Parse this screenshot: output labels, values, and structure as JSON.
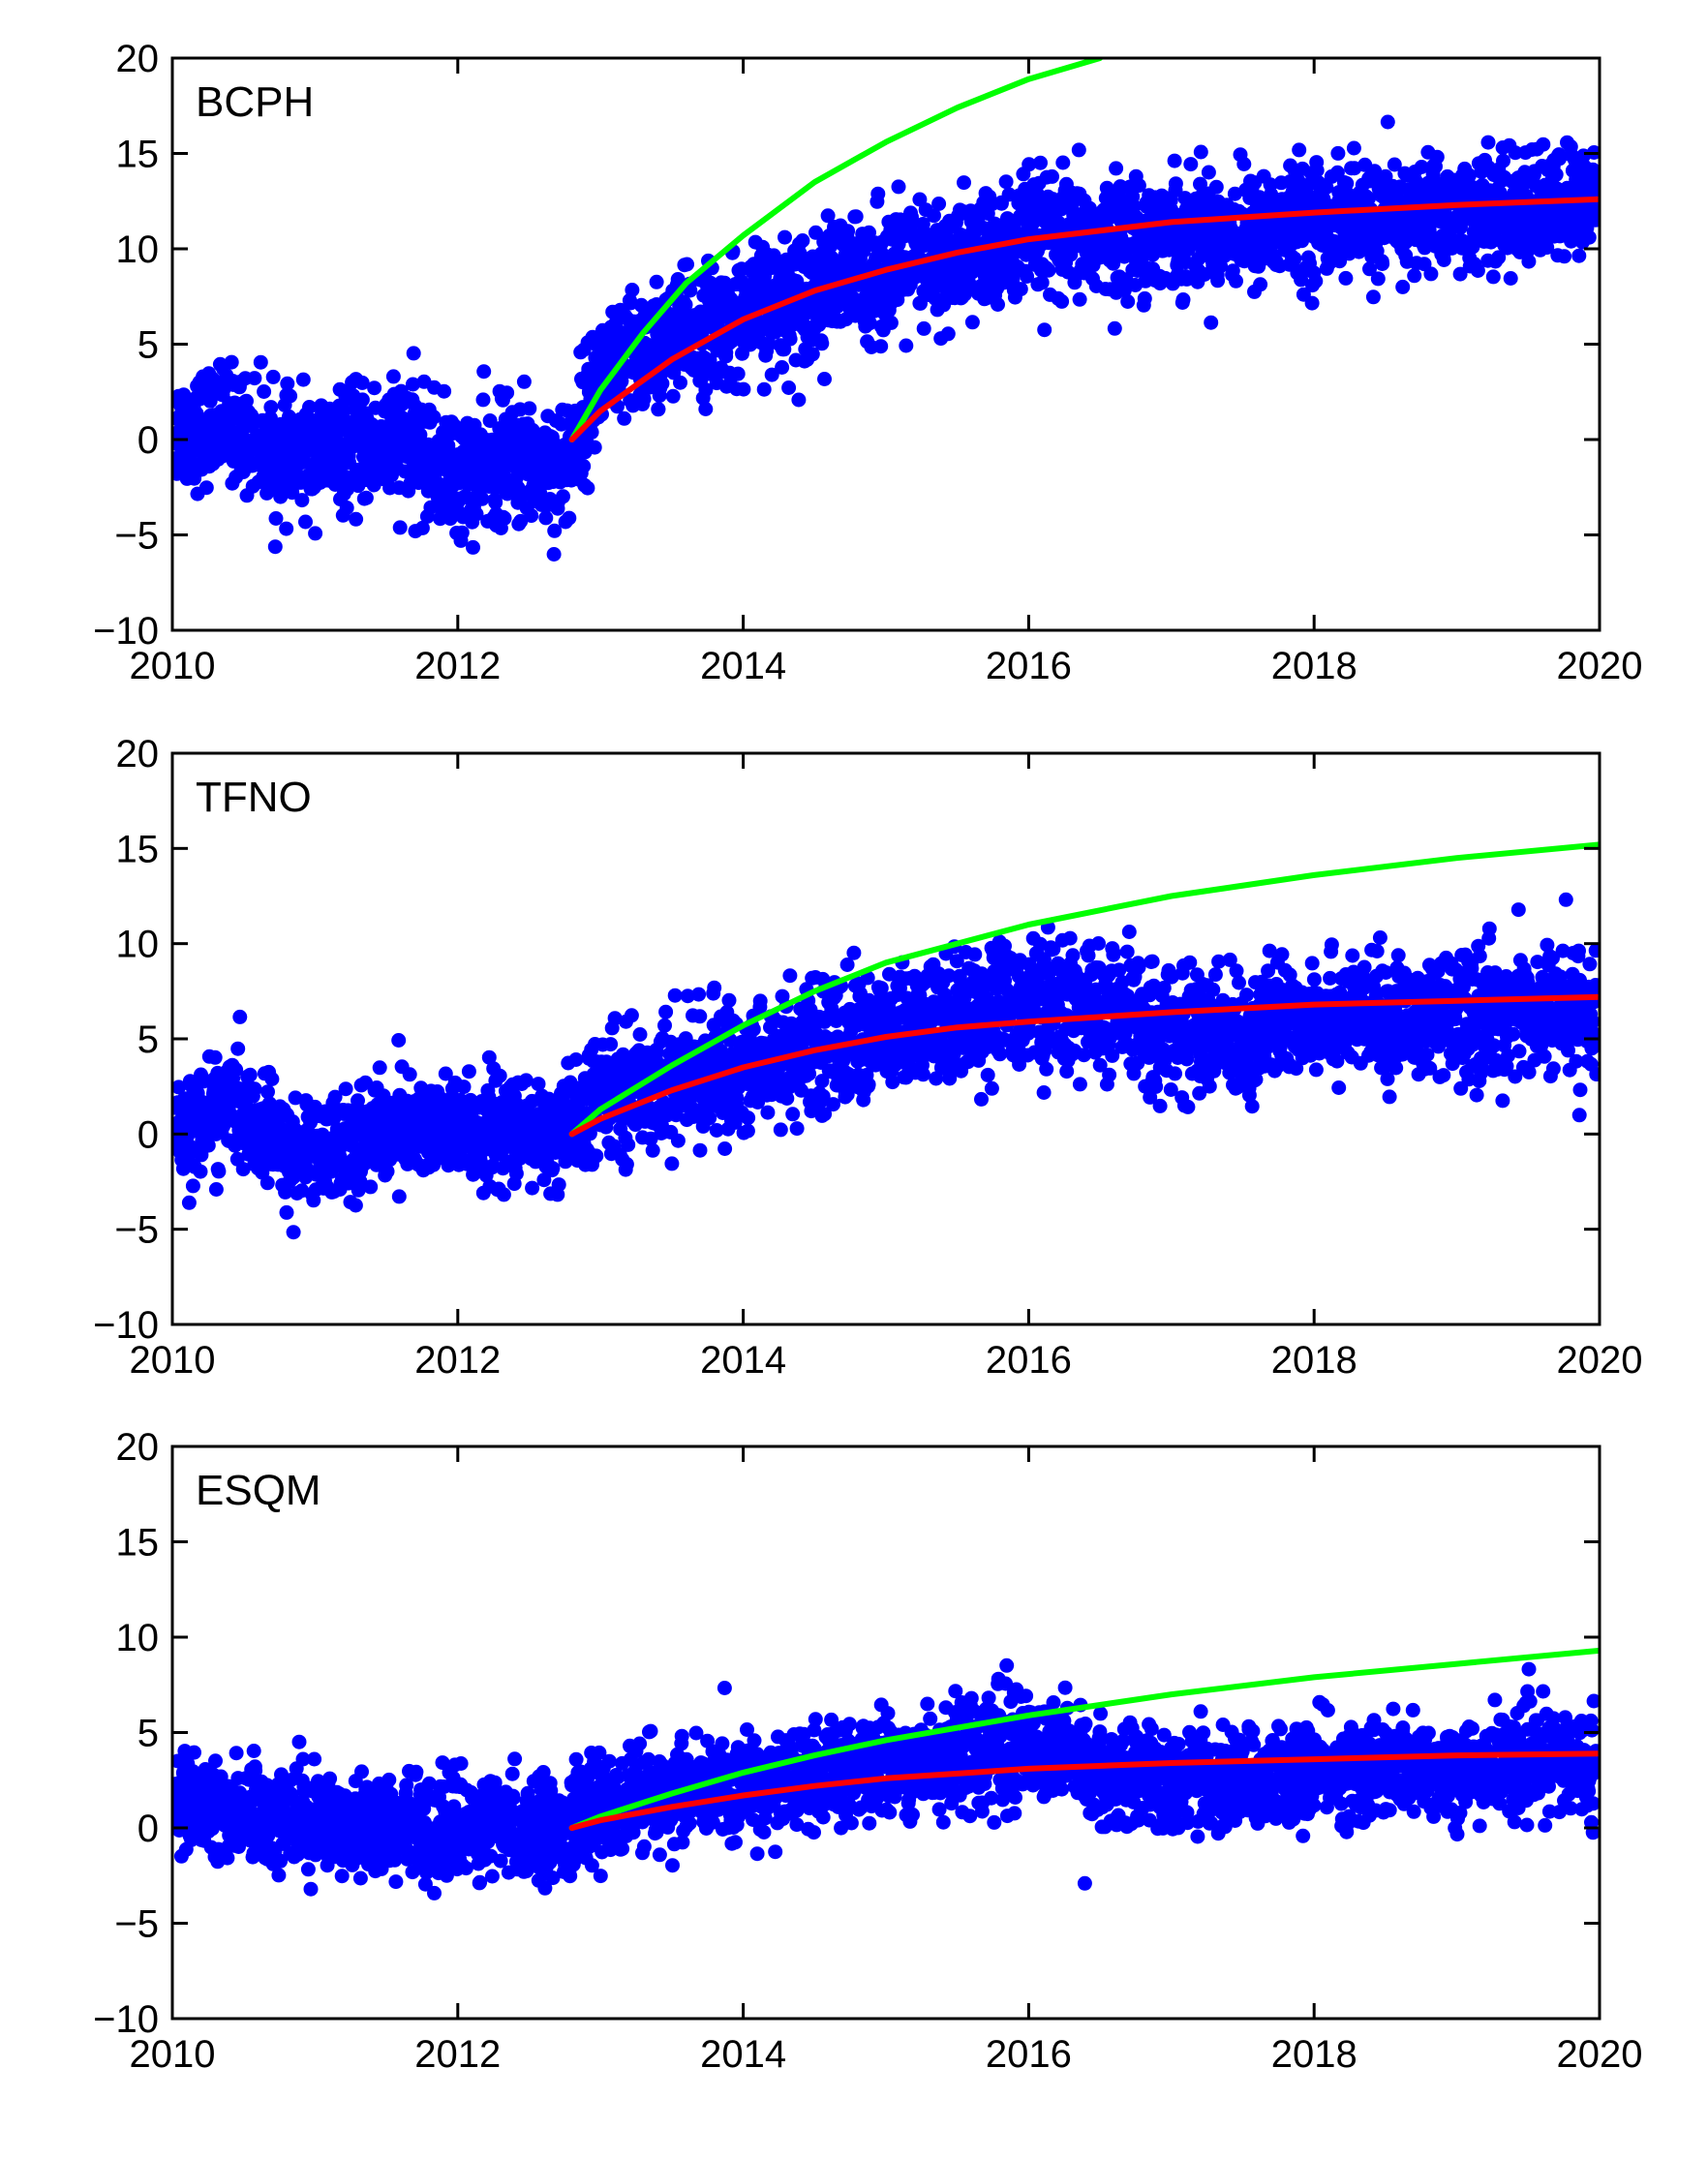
{
  "chart_data": [
    {
      "type": "scatter",
      "title": "BCPH",
      "xlim": [
        2010,
        2020
      ],
      "ylim": [
        -10,
        20
      ],
      "xticks": [
        2010,
        2012,
        2014,
        2016,
        2018,
        2020
      ],
      "yticks": [
        -10,
        -5,
        0,
        5,
        10,
        15,
        20
      ],
      "xtick_labels": [
        "2010",
        "2012",
        "2014",
        "2016",
        "2018",
        "2020"
      ],
      "ytick_labels": [
        "−10",
        "−5",
        "0",
        "5",
        "10",
        "15",
        "20"
      ],
      "grid": false,
      "series": [
        {
          "name": "observations",
          "kind": "points",
          "color": "#0000ff",
          "x": [
            2010.1,
            2010.4,
            2010.8,
            2011.2,
            2011.6,
            2012.0,
            2012.4,
            2012.75,
            2013.0,
            2013.3,
            2013.6,
            2014.0,
            2014.4,
            2014.8,
            2015.2,
            2015.6,
            2016.0,
            2016.5,
            2017.0,
            2017.5,
            2018.0,
            2018.5,
            2019.0,
            2019.5,
            2019.9
          ],
          "y": [
            0.5,
            1.0,
            -1.0,
            -0.5,
            0.0,
            -2.0,
            -1.0,
            -1.5,
            3.5,
            4.5,
            5.5,
            6.5,
            7.5,
            8.5,
            9.0,
            9.5,
            10.5,
            10.5,
            11.0,
            11.0,
            11.5,
            11.5,
            12.0,
            12.0,
            12.5
          ],
          "spread": [
            1.6,
            1.6,
            1.6,
            1.6,
            1.8,
            1.8,
            1.8,
            1.8,
            1.8,
            1.8,
            1.8,
            1.8,
            1.8,
            1.8,
            1.8,
            1.8,
            1.8,
            1.6,
            1.6,
            1.6,
            1.6,
            1.6,
            1.6,
            1.6,
            1.6
          ]
        },
        {
          "name": "green fit",
          "kind": "line",
          "color": "#00ff00",
          "x": [
            2012.8,
            2013.0,
            2013.3,
            2013.6,
            2014.0,
            2014.5,
            2015.0,
            2015.5,
            2016.0,
            2016.5
          ],
          "y": [
            0.0,
            2.6,
            5.6,
            8.2,
            10.7,
            13.5,
            15.6,
            17.4,
            18.9,
            20.0
          ]
        },
        {
          "name": "red fit",
          "kind": "line",
          "color": "#ff0000",
          "x": [
            2012.8,
            2013.0,
            2013.5,
            2014.0,
            2014.5,
            2015.0,
            2015.5,
            2016.0,
            2017.0,
            2018.0,
            2019.0,
            2020.0
          ],
          "y": [
            0.0,
            1.5,
            4.2,
            6.3,
            7.8,
            8.9,
            9.8,
            10.5,
            11.4,
            11.9,
            12.3,
            12.6
          ]
        }
      ]
    },
    {
      "type": "scatter",
      "title": "TFNO",
      "xlim": [
        2010,
        2020
      ],
      "ylim": [
        -10,
        20
      ],
      "xticks": [
        2010,
        2012,
        2014,
        2016,
        2018,
        2020
      ],
      "yticks": [
        -10,
        -5,
        0,
        5,
        10,
        15,
        20
      ],
      "xtick_labels": [
        "2010",
        "2012",
        "2014",
        "2016",
        "2018",
        "2020"
      ],
      "ytick_labels": [
        "−10",
        "−5",
        "0",
        "5",
        "10",
        "15",
        "20"
      ],
      "grid": false,
      "series": [
        {
          "name": "observations",
          "kind": "points",
          "color": "#0000ff",
          "x": [
            2010.1,
            2010.4,
            2010.8,
            2011.2,
            2011.6,
            2012.0,
            2012.4,
            2012.75,
            2013.0,
            2013.3,
            2013.6,
            2014.0,
            2014.4,
            2014.8,
            2015.2,
            2015.6,
            2016.0,
            2016.5,
            2017.0,
            2017.5,
            2018.0,
            2018.5,
            2019.0,
            2019.5,
            2019.9
          ],
          "y": [
            0.5,
            1.5,
            -1.0,
            -0.5,
            0.5,
            0.0,
            0.0,
            0.0,
            2.0,
            2.5,
            3.0,
            3.5,
            4.5,
            5.0,
            5.5,
            6.5,
            7.0,
            6.5,
            5.5,
            5.0,
            6.5,
            6.0,
            6.0,
            6.5,
            6.5
          ],
          "spread": [
            1.5,
            1.5,
            1.5,
            1.5,
            1.5,
            1.5,
            1.5,
            1.5,
            1.7,
            1.7,
            1.8,
            1.8,
            1.8,
            1.8,
            1.8,
            1.8,
            1.8,
            1.8,
            1.8,
            1.8,
            1.6,
            1.6,
            1.8,
            1.8,
            1.8
          ]
        },
        {
          "name": "green fit",
          "kind": "line",
          "color": "#00ff00",
          "x": [
            2012.8,
            2013.0,
            2013.5,
            2014.0,
            2014.5,
            2015.0,
            2016.0,
            2017.0,
            2018.0,
            2019.0,
            2020.0
          ],
          "y": [
            0.0,
            1.3,
            3.6,
            5.7,
            7.5,
            9.0,
            11.0,
            12.5,
            13.6,
            14.5,
            15.2
          ]
        },
        {
          "name": "red fit",
          "kind": "line",
          "color": "#ff0000",
          "x": [
            2012.8,
            2013.0,
            2013.5,
            2014.0,
            2014.5,
            2015.0,
            2015.5,
            2016.0,
            2017.0,
            2018.0,
            2019.0,
            2020.0
          ],
          "y": [
            0.0,
            0.8,
            2.3,
            3.5,
            4.4,
            5.1,
            5.6,
            5.9,
            6.4,
            6.8,
            7.0,
            7.2
          ]
        }
      ]
    },
    {
      "type": "scatter",
      "title": "ESQM",
      "xlim": [
        2010,
        2020
      ],
      "ylim": [
        -10,
        20
      ],
      "xticks": [
        2010,
        2012,
        2014,
        2016,
        2018,
        2020
      ],
      "yticks": [
        -10,
        -5,
        0,
        5,
        10,
        15,
        20
      ],
      "xtick_labels": [
        "2010",
        "2012",
        "2014",
        "2016",
        "2018",
        "2020"
      ],
      "ytick_labels": [
        "−10",
        "−5",
        "0",
        "5",
        "10",
        "15",
        "20"
      ],
      "grid": false,
      "series": [
        {
          "name": "observations",
          "kind": "points",
          "color": "#0000ff",
          "x": [
            2010.1,
            2010.4,
            2010.8,
            2011.2,
            2011.6,
            2012.0,
            2012.4,
            2012.75,
            2013.0,
            2013.3,
            2013.6,
            2014.0,
            2014.4,
            2014.8,
            2015.2,
            2015.6,
            2016.0,
            2016.5,
            2017.0,
            2017.5,
            2018.0,
            2018.5,
            2019.0,
            2019.5,
            2019.9
          ],
          "y": [
            1.0,
            1.0,
            0.5,
            0.5,
            0.0,
            0.0,
            0.0,
            0.0,
            1.0,
            1.5,
            1.8,
            2.0,
            2.5,
            3.0,
            3.5,
            4.0,
            4.5,
            3.0,
            2.5,
            2.5,
            3.0,
            3.0,
            3.0,
            3.5,
            3.5
          ],
          "spread": [
            1.4,
            1.4,
            1.4,
            1.4,
            1.4,
            1.4,
            1.4,
            1.4,
            1.4,
            1.4,
            1.4,
            1.4,
            1.4,
            1.4,
            1.4,
            1.6,
            1.6,
            1.4,
            1.4,
            1.4,
            1.4,
            1.4,
            1.4,
            1.4,
            1.4
          ]
        },
        {
          "name": "green fit",
          "kind": "line",
          "color": "#00ff00",
          "x": [
            2012.8,
            2013.0,
            2013.5,
            2014.0,
            2014.5,
            2015.0,
            2016.0,
            2017.0,
            2018.0,
            2019.0,
            2020.0
          ],
          "y": [
            0.0,
            0.6,
            1.8,
            2.9,
            3.8,
            4.6,
            5.9,
            7.0,
            7.9,
            8.6,
            9.3
          ]
        },
        {
          "name": "red fit",
          "kind": "line",
          "color": "#ff0000",
          "x": [
            2012.8,
            2013.0,
            2013.5,
            2014.0,
            2014.5,
            2015.0,
            2016.0,
            2017.0,
            2018.0,
            2019.0,
            2020.0
          ],
          "y": [
            0.0,
            0.4,
            1.1,
            1.7,
            2.2,
            2.6,
            3.1,
            3.4,
            3.6,
            3.8,
            3.9
          ]
        }
      ]
    }
  ]
}
